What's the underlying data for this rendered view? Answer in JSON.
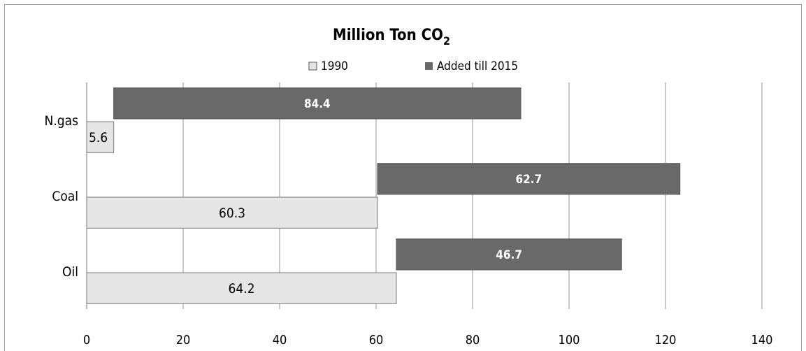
{
  "chart_data": {
    "type": "bar",
    "orientation": "horizontal",
    "title": "Million Ton CO",
    "title_subscript": "2",
    "categories": [
      "N.gas",
      "Coal",
      "Oil"
    ],
    "series": [
      {
        "name": "1990",
        "values": [
          5.6,
          60.3,
          64.2
        ],
        "color": "#e6e6e6"
      },
      {
        "name": "Added till 2015",
        "values": [
          84.4,
          62.7,
          46.7
        ],
        "color": "#696969"
      }
    ],
    "stacked_offset": "Added till 2015 bar starts at end of 1990 bar",
    "xlim": [
      0,
      140
    ],
    "xticks": [
      "0",
      "20",
      "40",
      "60",
      "80",
      "100",
      "120",
      "140"
    ],
    "grid": "vertical",
    "legend_position": "top"
  }
}
